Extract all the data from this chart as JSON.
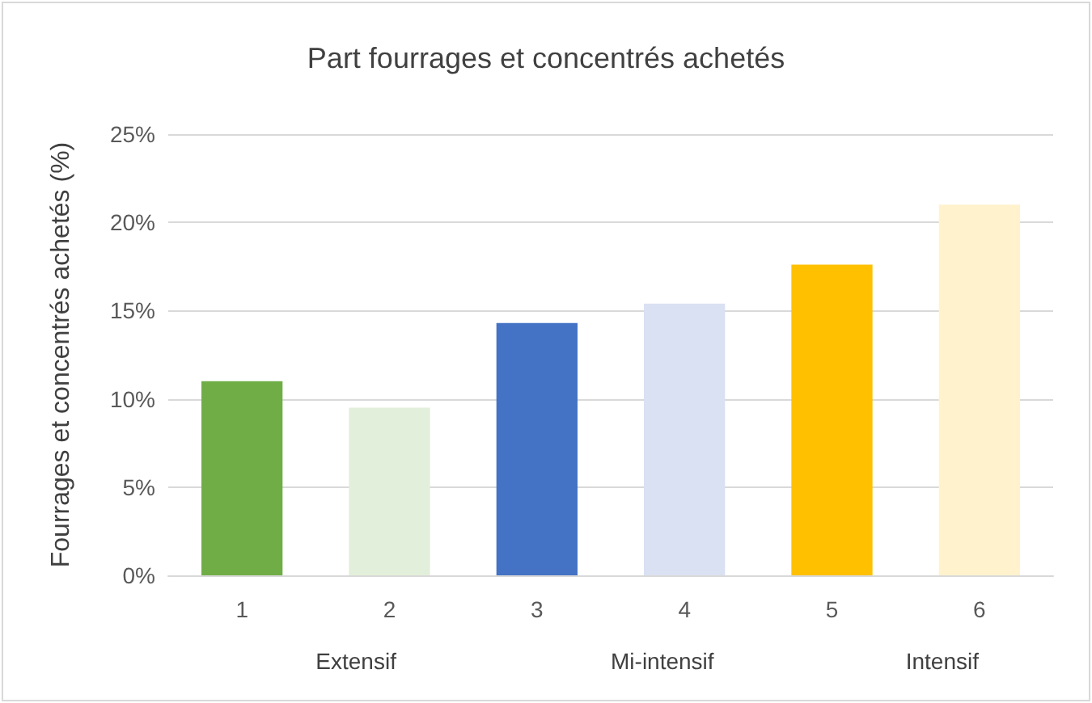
{
  "chart_data": {
    "type": "bar",
    "title": "Part fourrages et concentrés achetés",
    "ylabel": "Fourrages et concentrés achetés (%)",
    "categories": [
      "1",
      "2",
      "3",
      "4",
      "5",
      "6"
    ],
    "values": [
      11.0,
      9.5,
      14.3,
      15.4,
      17.6,
      21.0
    ],
    "colors": [
      "#70ad47",
      "#e2efda",
      "#4472c4",
      "#d9e1f2",
      "#ffc000",
      "#fff2cc"
    ],
    "ylim": [
      0,
      25
    ],
    "yticks": [
      {
        "value": 0,
        "label": "0%"
      },
      {
        "value": 5,
        "label": "5%"
      },
      {
        "value": 10,
        "label": "10%"
      },
      {
        "value": 15,
        "label": "15%"
      },
      {
        "value": 20,
        "label": "20%"
      },
      {
        "value": 25,
        "label": "25%"
      }
    ],
    "grid": "y",
    "annotations": [
      "Extensif",
      "Mi-intensif",
      "Intensif"
    ]
  }
}
